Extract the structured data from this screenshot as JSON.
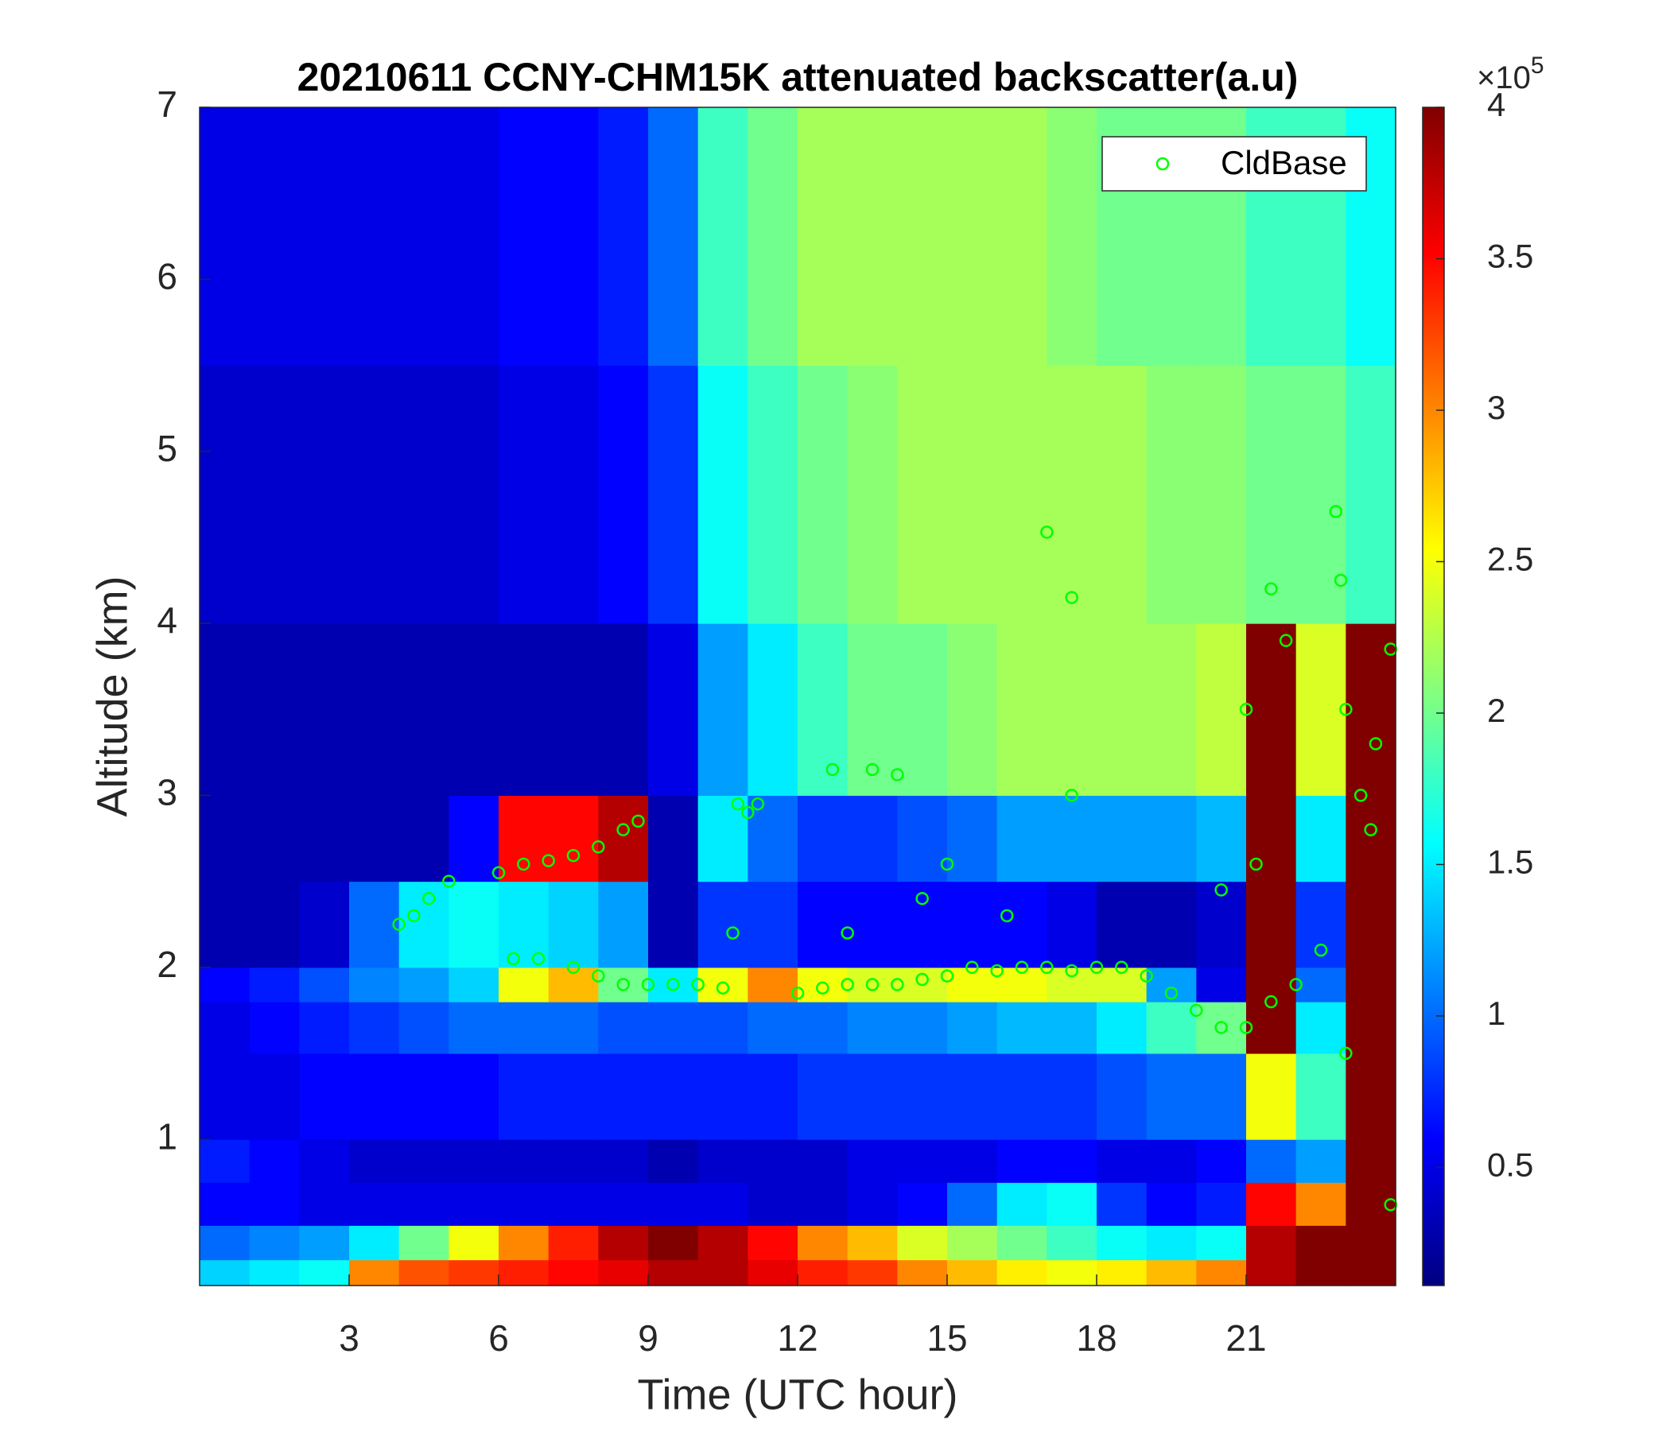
{
  "chart_data": {
    "type": "heatmap",
    "title": "20210611 CCNY-CHM15K attenuated backscatter(a.u)",
    "xlabel": "Time (UTC hour)",
    "ylabel": "Altitude (km)",
    "xlim": [
      0,
      24
    ],
    "ylim": [
      0.15,
      7
    ],
    "xticks": [
      3,
      6,
      9,
      12,
      15,
      18,
      21
    ],
    "yticks": [
      1,
      2,
      3,
      4,
      5,
      6,
      7
    ],
    "x_edges": [
      0,
      1,
      2,
      3,
      4,
      5,
      6,
      7,
      8,
      9,
      10,
      11,
      12,
      13,
      14,
      15,
      16,
      17,
      18,
      19,
      20,
      21,
      22,
      23,
      24
    ],
    "y_edges": [
      0.15,
      0.3,
      0.5,
      0.75,
      1,
      1.5,
      1.8,
      2,
      2.5,
      3,
      4,
      5.5,
      7
    ],
    "z": [
      [
        1.4,
        1.5,
        1.6,
        3.0,
        3.2,
        3.3,
        3.4,
        3.5,
        3.6,
        3.8,
        3.8,
        3.6,
        3.4,
        3.3,
        3.0,
        2.8,
        2.6,
        2.5,
        2.6,
        2.8,
        3.0,
        3.8,
        4,
        4
      ],
      [
        1.0,
        1.1,
        1.2,
        1.5,
        2.0,
        2.5,
        3.0,
        3.4,
        3.8,
        4,
        3.8,
        3.5,
        3.0,
        2.8,
        2.4,
        2.2,
        2.0,
        1.8,
        1.6,
        1.5,
        1.6,
        3.8,
        4,
        4
      ],
      [
        0.6,
        0.6,
        0.5,
        0.5,
        0.5,
        0.5,
        0.5,
        0.5,
        0.5,
        0.5,
        0.5,
        0.4,
        0.4,
        0.5,
        0.6,
        1.0,
        1.5,
        1.6,
        0.8,
        0.6,
        0.7,
        3.5,
        3,
        4
      ],
      [
        0.7,
        0.6,
        0.5,
        0.4,
        0.4,
        0.4,
        0.4,
        0.4,
        0.4,
        0.3,
        0.4,
        0.4,
        0.4,
        0.5,
        0.5,
        0.5,
        0.6,
        0.6,
        0.5,
        0.5,
        0.6,
        1.0,
        1.2,
        4
      ],
      [
        0.5,
        0.5,
        0.6,
        0.6,
        0.6,
        0.6,
        0.7,
        0.7,
        0.7,
        0.7,
        0.7,
        0.7,
        0.8,
        0.8,
        0.8,
        0.8,
        0.8,
        0.8,
        0.9,
        1.0,
        1.0,
        2.5,
        1.8,
        4
      ],
      [
        0.5,
        0.6,
        0.7,
        0.8,
        0.9,
        1.0,
        1.0,
        1.0,
        0.9,
        0.9,
        0.9,
        1.0,
        1.0,
        1.1,
        1.1,
        1.2,
        1.3,
        1.3,
        1.5,
        1.8,
        2.0,
        4,
        1.5,
        4
      ],
      [
        0.6,
        0.7,
        0.9,
        1.1,
        1.2,
        1.4,
        2.5,
        2.8,
        2.0,
        1.5,
        2.5,
        3.0,
        2.5,
        2.4,
        2.4,
        2.5,
        2.5,
        2.4,
        2.4,
        1.2,
        0.5,
        4,
        1.0,
        4
      ],
      [
        0.3,
        0.3,
        0.4,
        1.0,
        1.5,
        1.6,
        1.5,
        1.4,
        1.2,
        0.3,
        0.8,
        0.8,
        0.6,
        0.6,
        0.6,
        0.6,
        0.6,
        0.5,
        0.3,
        0.3,
        0.4,
        4,
        0.8,
        4
      ],
      [
        0.3,
        0.3,
        0.3,
        0.3,
        0.3,
        0.6,
        3.5,
        3.5,
        3.8,
        0.3,
        1.5,
        1.0,
        0.8,
        0.8,
        0.9,
        1.0,
        1.2,
        1.2,
        1.2,
        1.2,
        1.3,
        4,
        1.5,
        4
      ],
      [
        0.3,
        0.3,
        0.3,
        0.3,
        0.3,
        0.3,
        0.3,
        0.3,
        0.3,
        0.5,
        1.2,
        1.5,
        1.8,
        2.0,
        2.0,
        2.1,
        2.2,
        2.2,
        2.2,
        2.2,
        2.3,
        4,
        2.4,
        4
      ],
      [
        0.4,
        0.4,
        0.4,
        0.4,
        0.4,
        0.4,
        0.5,
        0.5,
        0.6,
        0.8,
        1.6,
        1.8,
        2.0,
        2.1,
        2.2,
        2.2,
        2.2,
        2.2,
        2.2,
        2.1,
        2.1,
        2.0,
        2.0,
        1.8
      ],
      [
        0.5,
        0.5,
        0.5,
        0.5,
        0.5,
        0.5,
        0.6,
        0.6,
        0.7,
        1.0,
        1.8,
        2.0,
        2.2,
        2.2,
        2.2,
        2.2,
        2.2,
        2.1,
        2.0,
        2.0,
        2.0,
        1.8,
        1.8,
        1.6
      ]
    ],
    "colormap": "jet",
    "clim": [
      0.11,
      4
    ],
    "cticks": [
      0.5,
      1,
      1.5,
      2,
      2.5,
      3,
      3.5,
      4
    ],
    "colorbar_multiplier": "×10",
    "colorbar_exponent": "5",
    "legend": "upper right",
    "overlay": {
      "type": "scatter",
      "name": "CldBase",
      "color": "#00ff00",
      "x": [
        4.0,
        4.3,
        4.6,
        5.0,
        6.0,
        6.5,
        7.0,
        7.5,
        8.0,
        8.5,
        8.8,
        6.3,
        6.8,
        7.5,
        8.0,
        8.5,
        9.0,
        9.5,
        10.0,
        10.5,
        10.8,
        11.2,
        12.0,
        12.5,
        13.0,
        13.5,
        14.0,
        14.5,
        15.0,
        15.5,
        16.0,
        16.5,
        17.0,
        17.5,
        18.0,
        18.5,
        19.0,
        19.5,
        20.0,
        20.5,
        21.0,
        21.5,
        22.0,
        22.5,
        23.0,
        23.5,
        23.9,
        23.9,
        12.7,
        13.5,
        14.0,
        13.0,
        14.5,
        16.2,
        17.0,
        17.5,
        17.5,
        21.0,
        21.5,
        21.8,
        22.8,
        22.9,
        23.0,
        23.3,
        23.6,
        20.5,
        21.2,
        10.7,
        11.0,
        15.0
      ],
      "y": [
        2.25,
        2.3,
        2.4,
        2.5,
        2.55,
        2.6,
        2.62,
        2.65,
        2.7,
        2.8,
        2.85,
        2.05,
        2.05,
        2.0,
        1.95,
        1.9,
        1.9,
        1.9,
        1.9,
        1.88,
        2.95,
        2.95,
        1.85,
        1.88,
        1.9,
        1.9,
        1.9,
        1.93,
        1.95,
        2.0,
        1.98,
        2.0,
        2.0,
        1.98,
        2.0,
        2.0,
        1.95,
        1.85,
        1.75,
        1.65,
        1.65,
        1.8,
        1.9,
        2.1,
        1.5,
        2.8,
        3.85,
        0.62,
        3.15,
        3.15,
        3.12,
        2.2,
        2.4,
        2.3,
        4.53,
        4.15,
        3.0,
        3.5,
        4.2,
        3.9,
        4.65,
        4.25,
        3.5,
        3.0,
        3.3,
        2.45,
        2.6,
        2.2,
        2.9,
        2.6
      ]
    }
  }
}
